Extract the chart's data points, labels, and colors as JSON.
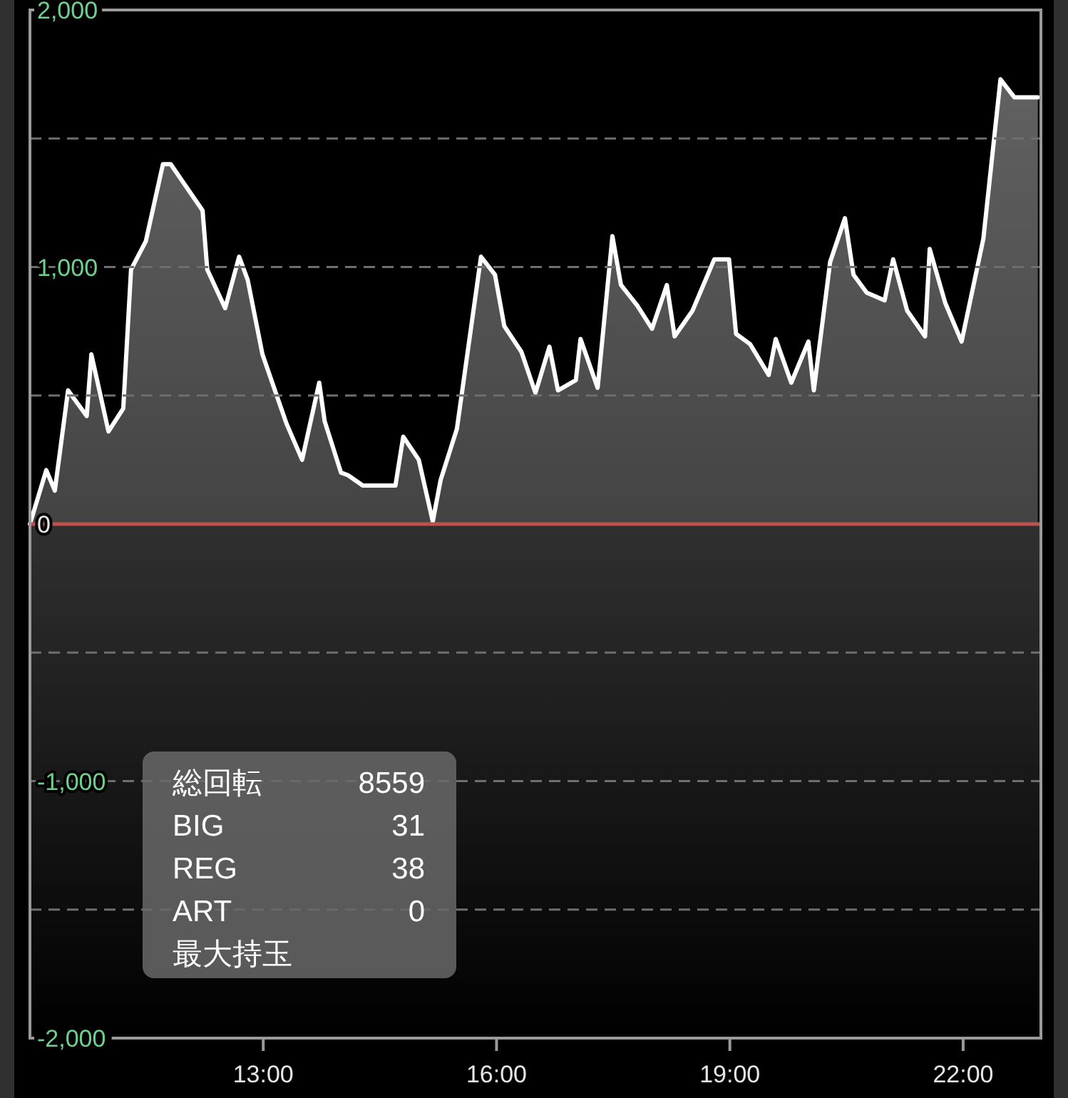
{
  "chart_data": {
    "type": "area",
    "x": [
      10.0,
      10.21,
      10.32,
      10.49,
      10.73,
      10.79,
      11.01,
      11.2,
      11.3,
      11.49,
      11.71,
      11.81,
      12.22,
      12.28,
      12.51,
      12.69,
      12.8,
      12.99,
      13.3,
      13.5,
      13.72,
      13.79,
      14.0,
      14.09,
      14.28,
      14.7,
      14.8,
      15.0,
      15.18,
      15.28,
      15.49,
      15.8,
      15.98,
      16.1,
      16.32,
      16.5,
      16.68,
      16.79,
      17.02,
      17.08,
      17.3,
      17.49,
      17.6,
      17.81,
      18.0,
      18.19,
      18.29,
      18.52,
      18.8,
      18.99,
      19.08,
      19.26,
      19.5,
      19.59,
      19.79,
      20.01,
      20.08,
      20.29,
      20.48,
      20.59,
      20.76,
      20.99,
      21.1,
      21.28,
      21.51,
      21.57,
      21.77,
      21.98,
      22.26,
      22.48,
      22.66,
      22.96
    ],
    "values": [
      0,
      210,
      130,
      520,
      420,
      660,
      360,
      450,
      990,
      1100,
      1400,
      1400,
      1220,
      990,
      840,
      1040,
      950,
      660,
      390,
      250,
      550,
      400,
      200,
      190,
      150,
      150,
      340,
      250,
      10,
      170,
      370,
      1040,
      970,
      770,
      670,
      510,
      690,
      520,
      560,
      720,
      530,
      1120,
      930,
      850,
      760,
      930,
      730,
      830,
      1030,
      1030,
      740,
      700,
      580,
      720,
      550,
      710,
      520,
      1020,
      1190,
      970,
      900,
      870,
      1030,
      830,
      730,
      1070,
      860,
      710,
      1110,
      1730,
      1660,
      1660
    ],
    "color": "#ffffff",
    "xlim": [
      10,
      23
    ],
    "xticks": [
      {
        "value": 13,
        "label": "13:00"
      },
      {
        "value": 16,
        "label": "16:00"
      },
      {
        "value": 19,
        "label": "19:00"
      },
      {
        "value": 22,
        "label": "22:00"
      }
    ],
    "ylim": [
      -2000,
      2000
    ],
    "yticks": [
      {
        "value": -2000,
        "label": "-2,000"
      },
      {
        "value": -1500,
        "label": null
      },
      {
        "value": -1000,
        "label": "-1,000"
      },
      {
        "value": -500,
        "label": null
      },
      0,
      {
        "value": 500,
        "label": null
      },
      {
        "value": 1000,
        "label": "1,000"
      },
      {
        "value": 1500,
        "label": null
      },
      {
        "value": 2000,
        "label": "2,000"
      }
    ],
    "grid": "y",
    "ref_lines": [
      {
        "axis": "y",
        "value": 0,
        "color": "#c0504d"
      }
    ],
    "annotations": [
      "総回転 8559",
      "BIG 31",
      "REG 38",
      "ART 0",
      "最大持玉"
    ]
  }
}
